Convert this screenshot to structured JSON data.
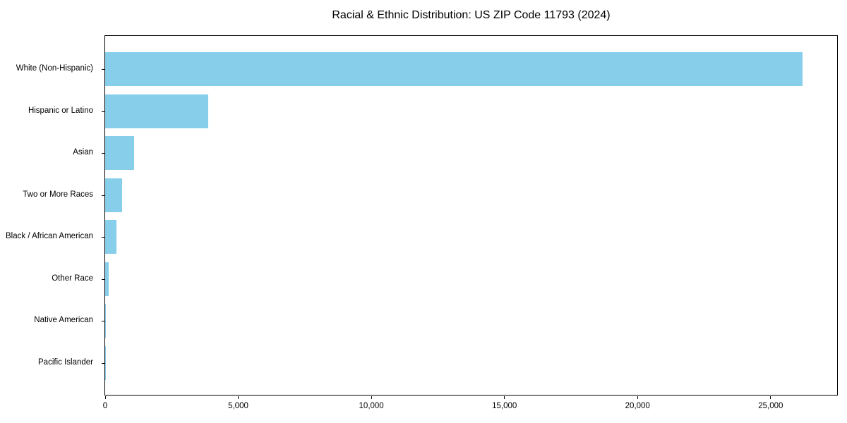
{
  "chart_data": {
    "type": "bar",
    "orientation": "horizontal",
    "title": "Racial & Ethnic Distribution: US ZIP Code 11793 (2024)",
    "categories": [
      "White (Non-Hispanic)",
      "Hispanic or Latino",
      "Asian",
      "Two or More Races",
      "Black / African American",
      "Other Race",
      "Native American",
      "Pacific Islander"
    ],
    "values": [
      26200,
      3860,
      1080,
      640,
      420,
      130,
      25,
      10
    ],
    "bar_color": "#87CEEB",
    "xlabel": "",
    "ylabel": "",
    "xlim": [
      0,
      27550
    ],
    "x_ticks": [
      0,
      5000,
      10000,
      15000,
      20000,
      25000
    ],
    "x_tick_labels": [
      "0",
      "5,000",
      "10,000",
      "15,000",
      "20,000",
      "25,000"
    ],
    "grid": "off",
    "legend": "none",
    "frame": "full-box"
  }
}
